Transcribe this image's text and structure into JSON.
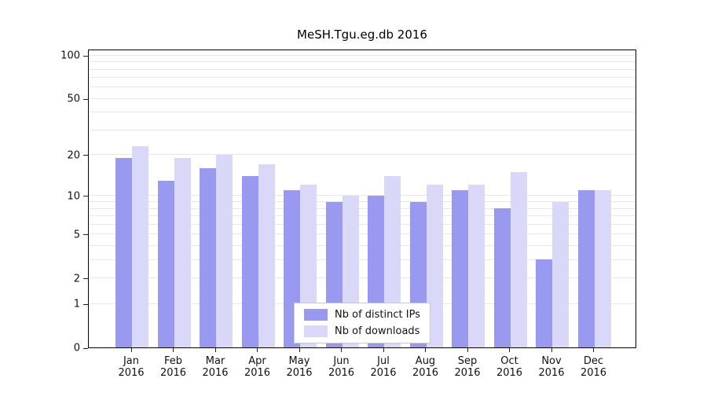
{
  "title": "MeSH.Tgu.eg.db 2016",
  "chart_data": {
    "type": "bar",
    "title": "MeSH.Tgu.eg.db 2016",
    "categories": [
      "Jan",
      "Feb",
      "Mar",
      "Apr",
      "May",
      "Jun",
      "Jul",
      "Aug",
      "Sep",
      "Oct",
      "Nov",
      "Dec"
    ],
    "year": "2016",
    "series": [
      {
        "name": "Nb of distinct IPs",
        "slug": "distinct-ips",
        "color": "#9999f0",
        "values": [
          19,
          13,
          16,
          14,
          11,
          9,
          10,
          9,
          11,
          8,
          3,
          11
        ]
      },
      {
        "name": "Nb of downloads",
        "slug": "downloads",
        "color": "#d9d8f8",
        "values": [
          23,
          19,
          20,
          17,
          12,
          10,
          14,
          12,
          12,
          15,
          9,
          11
        ]
      }
    ],
    "xlabel": "",
    "ylabel": "",
    "yscale": "log1p",
    "ylim": [
      0,
      100
    ],
    "ytick_labels": [
      0,
      1,
      2,
      5,
      10,
      20,
      50,
      100
    ],
    "minor_gridlines": [
      1,
      2,
      3,
      4,
      5,
      6,
      7,
      8,
      9,
      10,
      20,
      30,
      40,
      50,
      60,
      70,
      80,
      90,
      100
    ],
    "grid": "horizontal",
    "legend_position": "inside-bottom-center"
  }
}
